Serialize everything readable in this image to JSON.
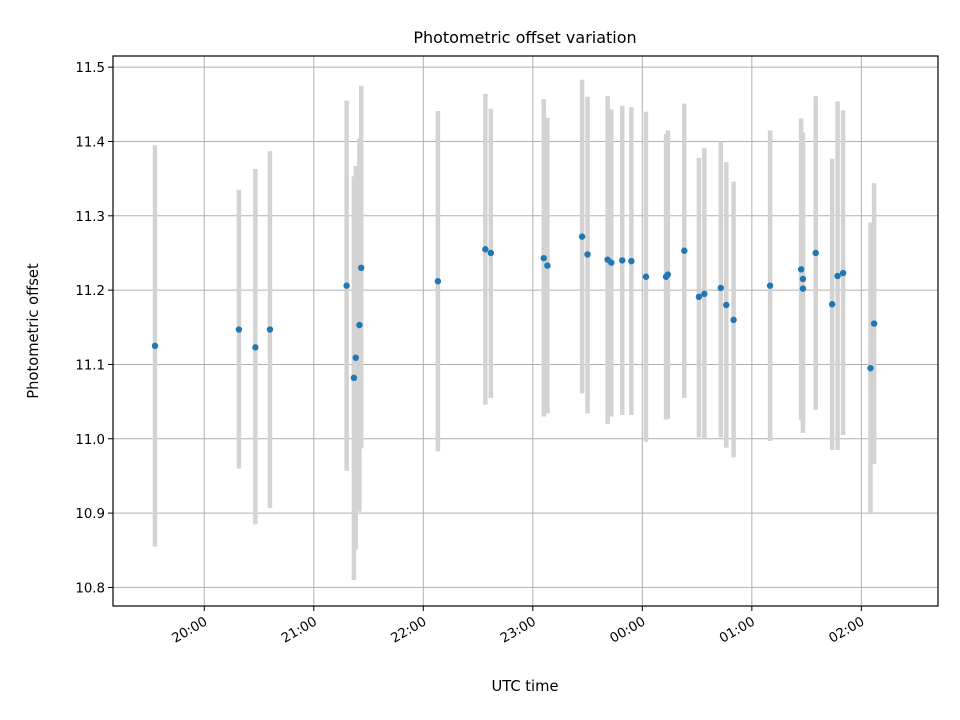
{
  "chart_data": {
    "type": "scatter",
    "title": "Photometric offset variation",
    "xlabel": "UTC time",
    "ylabel": "Photometric offset",
    "grid": true,
    "x_unit": "UTC time (hh:mm)",
    "xlim": [
      "19:10",
      "02:42"
    ],
    "ylim": [
      10.775,
      11.515
    ],
    "x_ticks": [
      "20:00",
      "21:00",
      "22:00",
      "23:00",
      "00:00",
      "01:00",
      "02:00"
    ],
    "y_ticks": [
      "10.8",
      "10.9",
      "11.0",
      "11.1",
      "11.2",
      "11.3",
      "11.4",
      "11.5"
    ],
    "colors": {
      "points": "#1f77b4",
      "error_bars": "#d3d3d3",
      "grid": "#b0b0b0",
      "axes": "#000000"
    },
    "points": [
      {
        "x": "19:33",
        "y": 11.125,
        "lo": 10.855,
        "hi": 11.395
      },
      {
        "x": "20:19",
        "y": 11.147,
        "lo": 10.96,
        "hi": 11.335
      },
      {
        "x": "20:28",
        "y": 11.123,
        "lo": 10.885,
        "hi": 11.363
      },
      {
        "x": "20:36",
        "y": 11.147,
        "lo": 10.907,
        "hi": 11.387
      },
      {
        "x": "21:18",
        "y": 11.206,
        "lo": 10.957,
        "hi": 11.455
      },
      {
        "x": "21:22",
        "y": 11.082,
        "lo": 10.81,
        "hi": 11.353
      },
      {
        "x": "21:23",
        "y": 11.109,
        "lo": 10.851,
        "hi": 11.367
      },
      {
        "x": "21:25",
        "y": 11.153,
        "lo": 10.902,
        "hi": 11.404
      },
      {
        "x": "21:26",
        "y": 11.23,
        "lo": 10.987,
        "hi": 11.475
      },
      {
        "x": "22:08",
        "y": 11.212,
        "lo": 10.983,
        "hi": 11.441
      },
      {
        "x": "22:34",
        "y": 11.255,
        "lo": 11.046,
        "hi": 11.464
      },
      {
        "x": "22:37",
        "y": 11.25,
        "lo": 11.055,
        "hi": 11.444
      },
      {
        "x": "23:06",
        "y": 11.243,
        "lo": 11.03,
        "hi": 11.457
      },
      {
        "x": "23:08",
        "y": 11.233,
        "lo": 11.034,
        "hi": 11.432
      },
      {
        "x": "23:27",
        "y": 11.272,
        "lo": 11.061,
        "hi": 11.483
      },
      {
        "x": "23:30",
        "y": 11.248,
        "lo": 11.034,
        "hi": 11.46
      },
      {
        "x": "23:41",
        "y": 11.241,
        "lo": 11.02,
        "hi": 11.461
      },
      {
        "x": "23:43",
        "y": 11.237,
        "lo": 11.03,
        "hi": 11.443
      },
      {
        "x": "23:49",
        "y": 11.24,
        "lo": 11.032,
        "hi": 11.448
      },
      {
        "x": "23:54",
        "y": 11.239,
        "lo": 11.032,
        "hi": 11.446
      },
      {
        "x": "00:02",
        "y": 11.218,
        "lo": 10.996,
        "hi": 11.44
      },
      {
        "x": "00:13",
        "y": 11.218,
        "lo": 11.026,
        "hi": 11.41
      },
      {
        "x": "00:14",
        "y": 11.221,
        "lo": 11.027,
        "hi": 11.415
      },
      {
        "x": "00:23",
        "y": 11.253,
        "lo": 11.055,
        "hi": 11.451
      },
      {
        "x": "00:31",
        "y": 11.191,
        "lo": 11.002,
        "hi": 11.378
      },
      {
        "x": "00:34",
        "y": 11.195,
        "lo": 11.0,
        "hi": 11.391
      },
      {
        "x": "00:43",
        "y": 11.203,
        "lo": 11.002,
        "hi": 11.4
      },
      {
        "x": "00:46",
        "y": 11.18,
        "lo": 10.988,
        "hi": 11.372
      },
      {
        "x": "00:50",
        "y": 11.16,
        "lo": 10.975,
        "hi": 11.346
      },
      {
        "x": "01:10",
        "y": 11.206,
        "lo": 10.997,
        "hi": 11.415
      },
      {
        "x": "01:27",
        "y": 11.228,
        "lo": 11.025,
        "hi": 11.431
      },
      {
        "x": "01:28",
        "y": 11.215,
        "lo": 11.018,
        "hi": 11.412
      },
      {
        "x": "01:28",
        "y": 11.202,
        "lo": 11.008,
        "hi": 11.398
      },
      {
        "x": "01:35",
        "y": 11.25,
        "lo": 11.039,
        "hi": 11.461
      },
      {
        "x": "01:44",
        "y": 11.181,
        "lo": 10.985,
        "hi": 11.377
      },
      {
        "x": "01:47",
        "y": 11.219,
        "lo": 10.985,
        "hi": 11.454
      },
      {
        "x": "01:50",
        "y": 11.223,
        "lo": 11.005,
        "hi": 11.442
      },
      {
        "x": "02:05",
        "y": 11.095,
        "lo": 10.9,
        "hi": 11.291
      },
      {
        "x": "02:07",
        "y": 11.155,
        "lo": 10.966,
        "hi": 11.344
      }
    ]
  }
}
